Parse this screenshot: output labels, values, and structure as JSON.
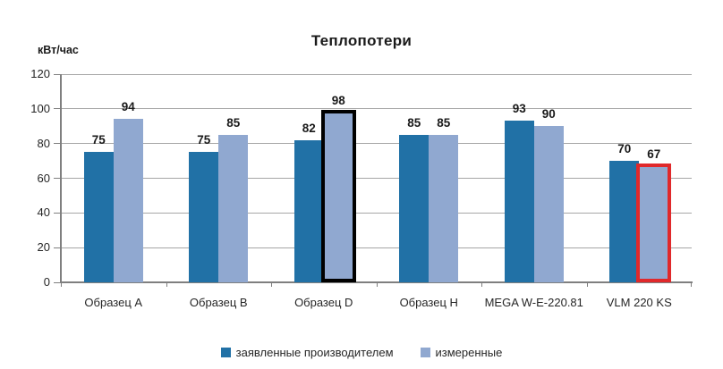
{
  "chart_data": {
    "type": "bar",
    "title": "Теплопотери",
    "ylabel": "кВт/час",
    "xlabel": "",
    "categories": [
      "Образец A",
      "Образец B",
      "Образец D",
      "Образец H",
      "MEGA W-E-220.81",
      "VLM 220 KS"
    ],
    "series": [
      {
        "name": "заявленные производителем",
        "color": "#2171a6",
        "values": [
          75,
          75,
          82,
          85,
          93,
          70
        ]
      },
      {
        "name": "измеренные",
        "color": "#90a8d0",
        "values": [
          94,
          85,
          98,
          85,
          90,
          67
        ]
      }
    ],
    "ylim": [
      0,
      120
    ],
    "y_tick_step": 20,
    "grid": true,
    "legend_position": "bottom",
    "highlights": [
      {
        "series_index": 1,
        "category_index": 2,
        "outline_color": "#000000"
      },
      {
        "series_index": 1,
        "category_index": 5,
        "outline_color": "#e0292b"
      }
    ],
    "colors": {
      "gridline": "#a6a6a6",
      "axis": "#7f7f7f",
      "label_text": "#1a1a1a"
    }
  }
}
